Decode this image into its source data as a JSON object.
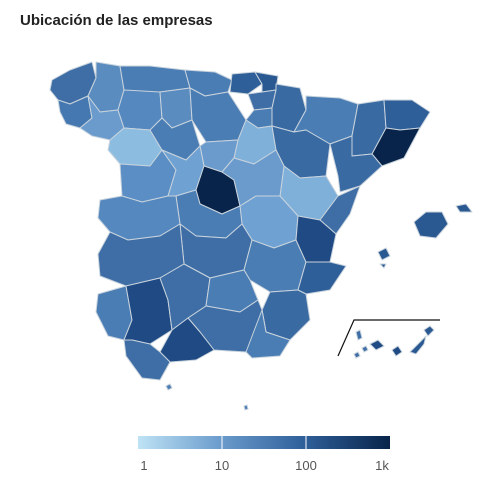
{
  "title": "Ubicación de las empresas",
  "legend": {
    "ticks": [
      "1",
      "10",
      "100",
      "1k"
    ],
    "color_low": "#bfe3f5",
    "color_high": "#08244a",
    "scale": "log"
  },
  "colors": {
    "border": "#c8d3dd",
    "canary_box": "#111111"
  }
}
